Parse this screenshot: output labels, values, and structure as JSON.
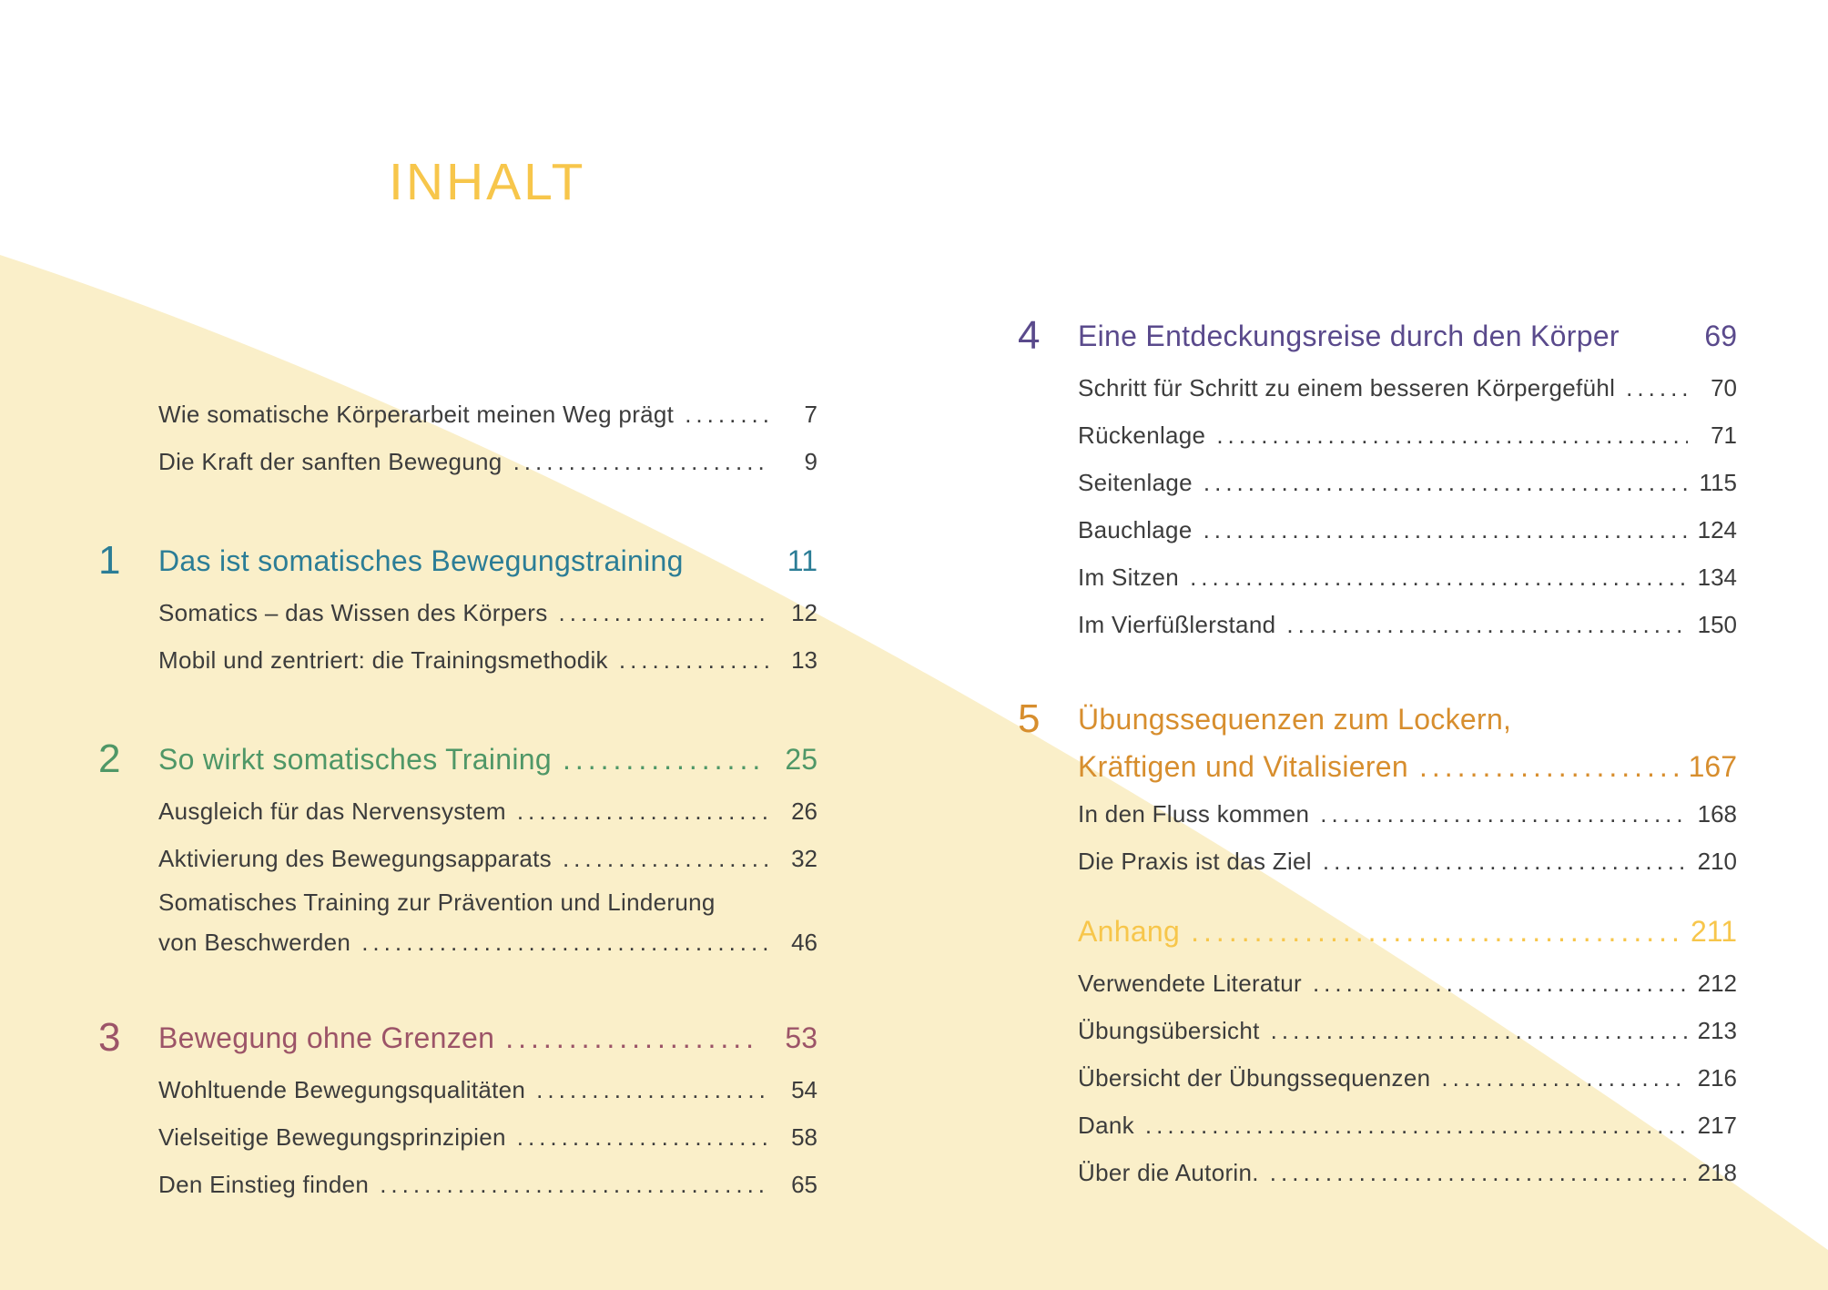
{
  "page": {
    "title": "INHALT",
    "colors": {
      "background": "#FFFFFF",
      "curve_fill": "#FAEFC9",
      "title": "#F7C64B",
      "body_text": "#3C3C3C",
      "section1": "#2B7D96",
      "section2": "#4F9767",
      "section3": "#9C5468",
      "section4": "#5A4A8C",
      "section5": "#D78E2E",
      "anhang": "#F7C64B"
    }
  },
  "left_column": {
    "sections": [
      {
        "number": null,
        "color": null,
        "heading": null,
        "entries": [
          {
            "lines": [
              {
                "text": "Wie somatische Körperarbeit meinen Weg prägt",
                "dots": true,
                "page": "7"
              }
            ]
          },
          {
            "lines": [
              {
                "text": "Die Kraft der sanften Bewegung",
                "dots": true,
                "page": "9"
              }
            ]
          }
        ]
      },
      {
        "number": "1",
        "color": "#2B7D96",
        "heading": {
          "lines": [
            {
              "text": "Das ist somatisches Bewegungstraining",
              "dots": false,
              "page": "11"
            }
          ]
        },
        "entries": [
          {
            "lines": [
              {
                "text": "Somatics – das Wissen des Körpers",
                "dots": true,
                "page": "12"
              }
            ]
          },
          {
            "lines": [
              {
                "text": "Mobil und zentriert: die Trainingsmethodik",
                "dots": true,
                "page": "13"
              }
            ]
          }
        ]
      },
      {
        "number": "2",
        "color": "#4F9767",
        "heading": {
          "lines": [
            {
              "text": "So wirkt somatisches Training",
              "dots": true,
              "page": "25"
            }
          ]
        },
        "entries": [
          {
            "lines": [
              {
                "text": "Ausgleich für das Nervensystem",
                "dots": true,
                "page": "26"
              }
            ]
          },
          {
            "lines": [
              {
                "text": "Aktivierung des Bewegungsapparats",
                "dots": true,
                "page": "32"
              }
            ]
          },
          {
            "lines": [
              {
                "text": "Somatisches Training zur Prävention und Linderung",
                "dots": false,
                "page": ""
              },
              {
                "text": "von Beschwerden",
                "dots": true,
                "page": "46"
              }
            ]
          }
        ]
      },
      {
        "number": "3",
        "color": "#9C5468",
        "heading": {
          "lines": [
            {
              "text": "Bewegung ohne Grenzen",
              "dots": true,
              "page": "53"
            }
          ]
        },
        "entries": [
          {
            "lines": [
              {
                "text": "Wohltuende Bewegungsqualitäten",
                "dots": true,
                "page": "54"
              }
            ]
          },
          {
            "lines": [
              {
                "text": "Vielseitige Bewegungsprinzipien",
                "dots": true,
                "page": "58"
              }
            ]
          },
          {
            "lines": [
              {
                "text": "Den Einstieg finden",
                "dots": true,
                "page": "65"
              }
            ]
          }
        ]
      }
    ]
  },
  "right_column": {
    "sections": [
      {
        "number": "4",
        "color": "#5A4A8C",
        "heading": {
          "lines": [
            {
              "text": "Eine Entdeckungsreise durch den Körper",
              "dots": false,
              "page": "69"
            }
          ]
        },
        "entries": [
          {
            "lines": [
              {
                "text": "Schritt für Schritt zu einem besseren Körpergefühl",
                "dots": true,
                "page": "70"
              }
            ]
          },
          {
            "lines": [
              {
                "text": "Rückenlage",
                "dots": true,
                "page": "71"
              }
            ]
          },
          {
            "lines": [
              {
                "text": "Seitenlage",
                "dots": true,
                "page": "115"
              }
            ]
          },
          {
            "lines": [
              {
                "text": "Bauchlage",
                "dots": true,
                "page": "124"
              }
            ]
          },
          {
            "lines": [
              {
                "text": "Im Sitzen",
                "dots": true,
                "page": "134"
              }
            ]
          },
          {
            "lines": [
              {
                "text": "Im Vierfüßlerstand",
                "dots": true,
                "page": "150"
              }
            ]
          }
        ]
      },
      {
        "number": "5",
        "color": "#D78E2E",
        "heading": {
          "lines": [
            {
              "text": "Übungssequenzen zum Lockern,",
              "dots": false,
              "page": ""
            },
            {
              "text": "Kräftigen und Vitalisieren",
              "dots": true,
              "page": "167"
            }
          ]
        },
        "entries": [
          {
            "lines": [
              {
                "text": "In den Fluss kommen",
                "dots": true,
                "page": "168"
              }
            ]
          },
          {
            "lines": [
              {
                "text": "Die Praxis ist das Ziel",
                "dots": true,
                "page": "210"
              }
            ]
          }
        ]
      },
      {
        "number": null,
        "color": "#F7C64B",
        "heading": {
          "lines": [
            {
              "text": "Anhang",
              "dots": true,
              "page": "211"
            }
          ]
        },
        "entries": [
          {
            "lines": [
              {
                "text": "Verwendete Literatur",
                "dots": true,
                "page": "212"
              }
            ]
          },
          {
            "lines": [
              {
                "text": "Übungsübersicht",
                "dots": true,
                "page": "213"
              }
            ]
          },
          {
            "lines": [
              {
                "text": "Übersicht der Übungssequenzen",
                "dots": true,
                "page": "216"
              }
            ]
          },
          {
            "lines": [
              {
                "text": "Dank",
                "dots": true,
                "page": "217"
              }
            ]
          },
          {
            "lines": [
              {
                "text": "Über die Autorin.",
                "dots": true,
                "page": "218"
              }
            ]
          }
        ]
      }
    ]
  }
}
